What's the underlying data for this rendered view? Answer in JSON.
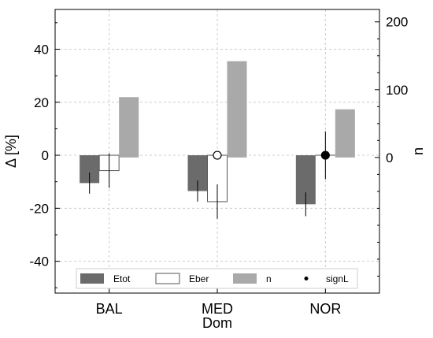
{
  "chart_data": {
    "type": "bar",
    "categories": [
      "BAL",
      "MED",
      "NOR"
    ],
    "xlabel": "Dom",
    "ylabel_left": "Δ [%]",
    "ylabel_right": "n",
    "ylim_left": [
      -52,
      55
    ],
    "ylim_right": [
      -200,
      218.3
    ],
    "yticks_left": [
      40,
      20,
      0,
      -20,
      -40
    ],
    "ytick_labels_left": [
      "40",
      "20",
      "0",
      "-20",
      "-40"
    ],
    "yticks_right": [
      200,
      100,
      0
    ],
    "ytick_labels_right": [
      "200",
      "100",
      "0"
    ],
    "grid": true,
    "legend_position": "bottom",
    "series": [
      {
        "name": "Etot",
        "axis": "left",
        "color": "#6b6b6b",
        "values": [
          -10.5,
          -13.5,
          -18.5
        ],
        "error": [
          4,
          4,
          4.5
        ]
      },
      {
        "name": "Eber",
        "axis": "left",
        "color": "#ffffff",
        "edge": "#555555",
        "values": [
          -5.8,
          -17.5,
          0
        ],
        "error": [
          6.5,
          6.5,
          9
        ]
      },
      {
        "name": "n",
        "axis": "right",
        "color": "#a9a9a9",
        "values": [
          89,
          142,
          71
        ]
      }
    ],
    "signL": {
      "name": "signL",
      "markers": [
        {
          "category": "MED",
          "value": 0,
          "filled": false
        },
        {
          "category": "NOR",
          "value": 0,
          "filled": true
        }
      ]
    },
    "legend": [
      {
        "name": "Etot",
        "swatch": "filled",
        "color": "#6b6b6b"
      },
      {
        "name": "Eber",
        "swatch": "outline",
        "color": "#ffffff"
      },
      {
        "name": "n",
        "swatch": "filled",
        "color": "#a9a9a9"
      },
      {
        "name": "signL",
        "swatch": "dot",
        "color": "#000000"
      }
    ]
  }
}
